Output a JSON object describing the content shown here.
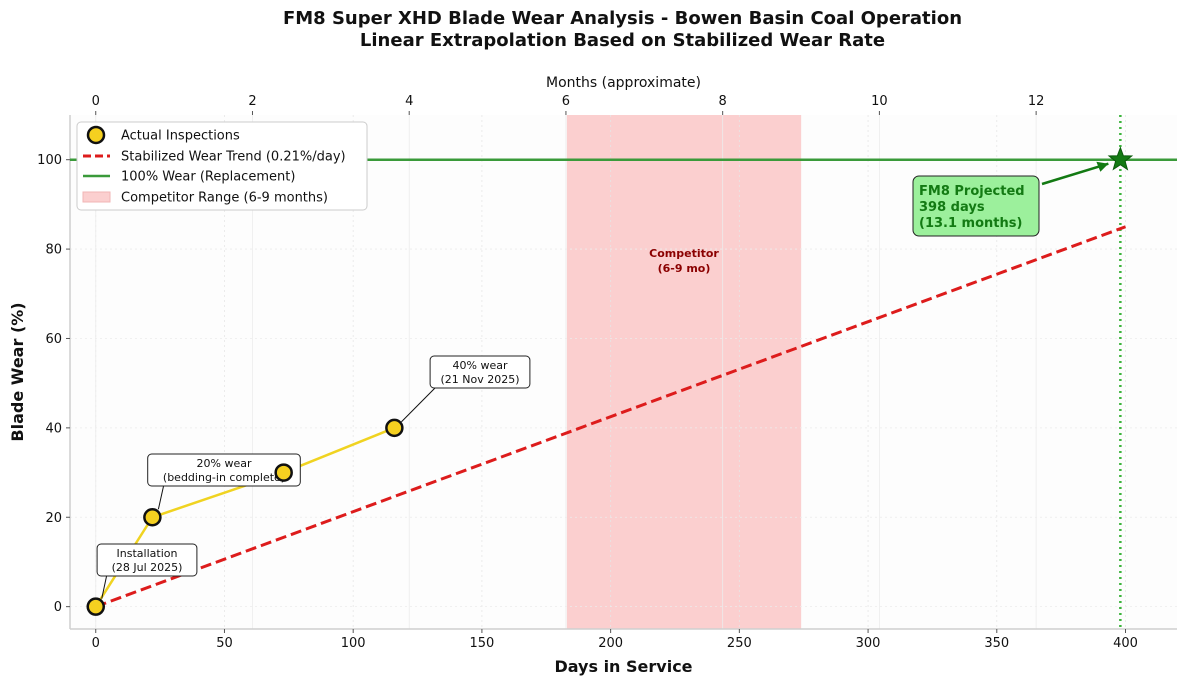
{
  "title_line1": "FM8 Super XHD Blade Wear Analysis - Bowen Basin Coal Operation",
  "title_line2": "Linear Extrapolation Based on Stabilized Wear Rate",
  "chart_data": {
    "type": "line",
    "title": "FM8 Super XHD Blade Wear Analysis - Bowen Basin Coal Operation\nLinear Extrapolation Based on Stabilized Wear Rate",
    "xlabel": "Days in Service",
    "ylabel": "Blade Wear (%)",
    "x2label": "Months (approximate)",
    "xlim": [
      -10,
      420
    ],
    "ylim": [
      -5,
      110
    ],
    "xticks": [
      0,
      50,
      100,
      150,
      200,
      250,
      300,
      350,
      400
    ],
    "yticks": [
      0,
      20,
      40,
      60,
      80,
      100
    ],
    "x2ticks": [
      0,
      2,
      4,
      6,
      8,
      10,
      12
    ],
    "days_per_month": 30.44,
    "grid": true,
    "legend_position": "top-left",
    "colors": {
      "inspection_fill": "#f5d020",
      "inspection_line": "#f0d321",
      "trend": "#dd1c1c",
      "replacement": "#3a9a3a",
      "competitor": "#fbcfcf",
      "projection": "#137a13",
      "projection_box": "#9cf09c",
      "competitor_text": "#8b0000"
    },
    "series": [
      {
        "name": "Actual Inspections",
        "kind": "line-markers",
        "x": [
          0,
          22,
          73,
          116
        ],
        "y": [
          0,
          20,
          30,
          40
        ]
      },
      {
        "name": "Stabilized Wear Trend (0.21%/day)",
        "kind": "dashed",
        "x": [
          0,
          400
        ],
        "y": [
          0,
          85
        ]
      },
      {
        "name": "100% Wear (Replacement)",
        "kind": "hline",
        "y": 100
      },
      {
        "name": "Competitor Range (6-9 months)",
        "kind": "vspan",
        "x": [
          183,
          274
        ]
      }
    ],
    "projection": {
      "x": 398,
      "y": 100,
      "label": [
        "FM8 Projected",
        "398 days",
        "(13.1 months)"
      ]
    },
    "competitor_label": [
      "Competitor",
      "(6-9 mo)"
    ],
    "annotations": [
      {
        "lines": [
          "Installation",
          "(28 Jul 2025)"
        ],
        "x": 0,
        "y": 0
      },
      {
        "lines": [
          "20% wear",
          "(bedding-in complete)"
        ],
        "x": 22,
        "y": 20
      },
      {
        "lines": [
          "40% wear",
          "(21 Nov 2025)"
        ],
        "x": 116,
        "y": 40
      }
    ]
  }
}
